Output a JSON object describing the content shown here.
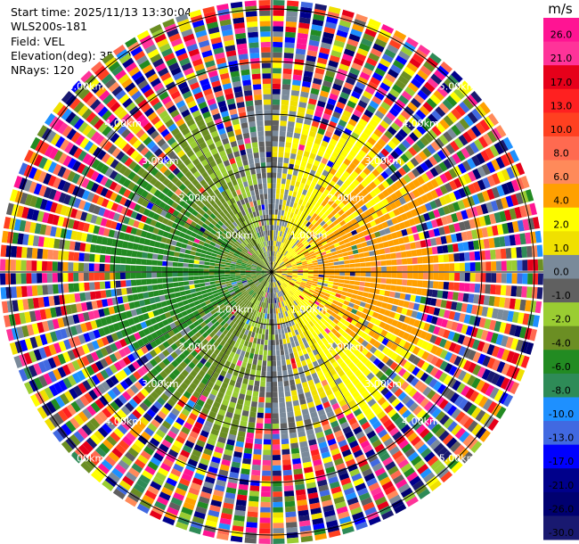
{
  "header": {
    "start_time": "Start time: 2025/11/13 13:30:04",
    "instrument": "WLS200s-181",
    "field": "Field: VEL",
    "elevation": "Elevation(deg): 35.00",
    "nrays": "NRays: 120"
  },
  "chart_data": {
    "type": "heatmap",
    "subtype": "ppi-polar",
    "field": "VEL",
    "n_rays": 120,
    "range_rings_km": [
      1,
      2,
      3,
      4,
      5
    ],
    "ring_labels": [
      "1.00km",
      "2.00km",
      "3.00km",
      "4.00km",
      "5.00km"
    ],
    "colorbar": {
      "unit": "m/s",
      "ticks": [
        "26.0",
        "21.0",
        "17.0",
        "13.0",
        "10.0",
        "8.0",
        "6.0",
        "4.0",
        "2.0",
        "1.0",
        "0.0",
        "-1.0",
        "-2.0",
        "-4.0",
        "-6.0",
        "-8.0",
        "-10.0",
        "-13.0",
        "-17.0",
        "-21.0",
        "-26.0",
        "-30.0"
      ],
      "colors": [
        "#ff1493",
        "#ff3399",
        "#e6001a",
        "#ff2020",
        "#ff4020",
        "#ff6a50",
        "#ff8a5a",
        "#ffa000",
        "#ffff00",
        "#f0e000",
        "#7a8a9a",
        "#606060",
        "#9acd32",
        "#6b8e23",
        "#228b22",
        "#2e8b57",
        "#1e90ff",
        "#4169e1",
        "#0000ff",
        "#00008b",
        "#000070",
        "#191970"
      ]
    }
  }
}
